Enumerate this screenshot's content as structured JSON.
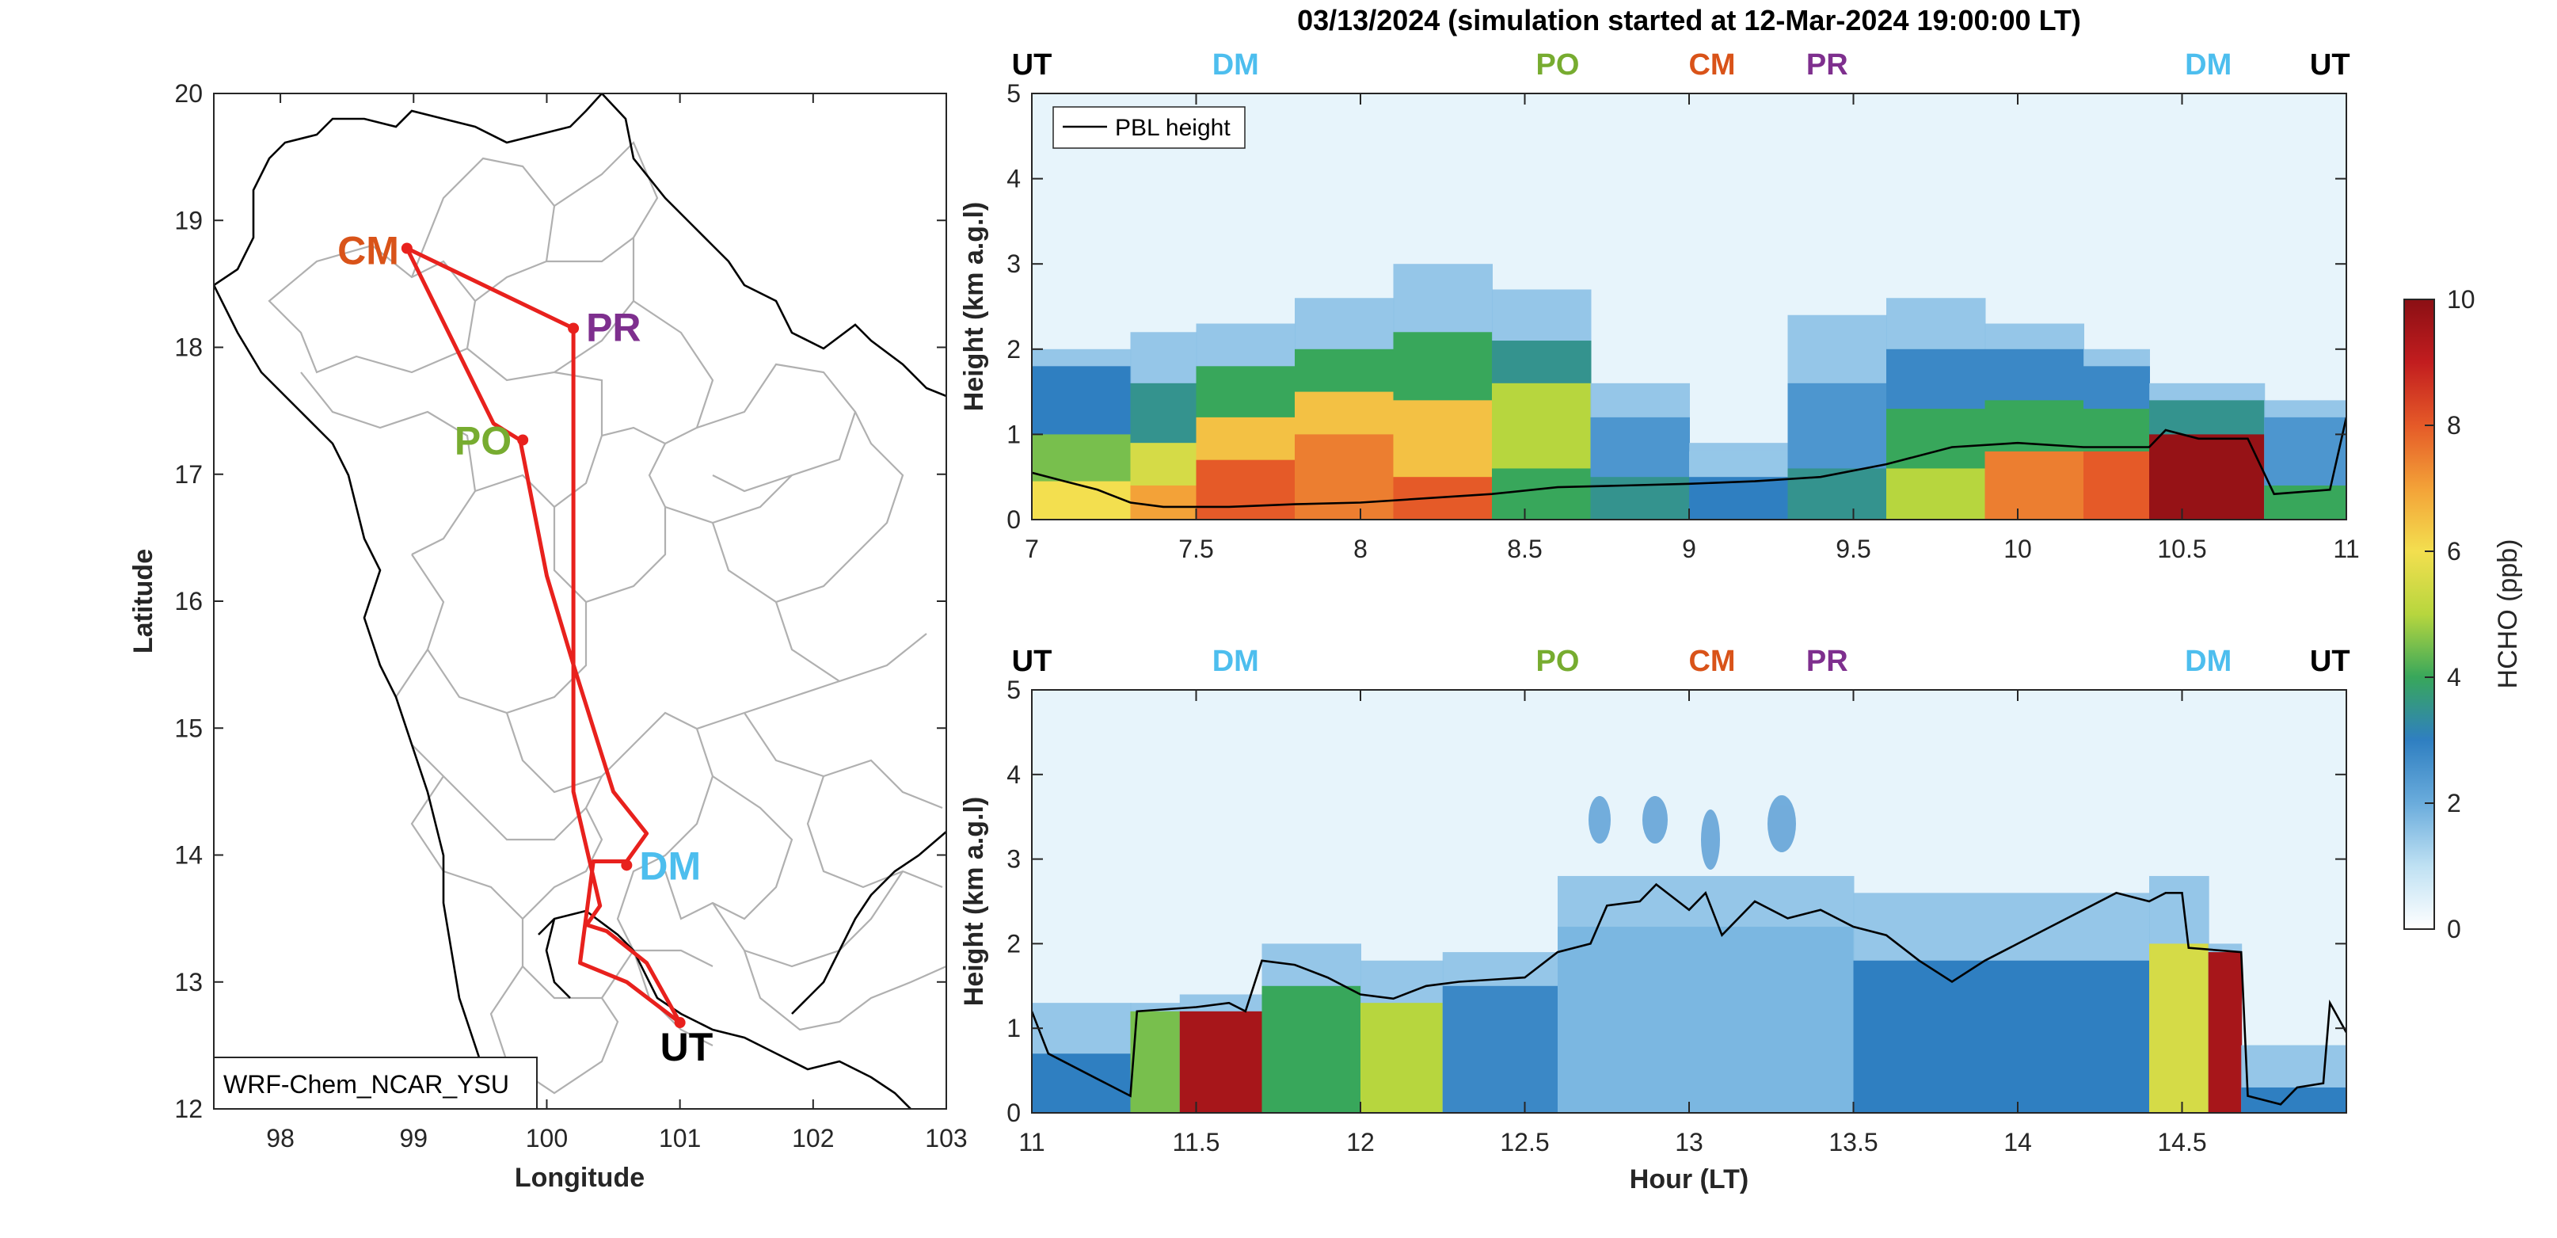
{
  "chart_data": [
    {
      "type": "map",
      "model_label": "WRF-Chem_NCAR_YSU",
      "xlabel": "Longitude",
      "ylabel": "Latitude",
      "xlim": [
        97.5,
        103
      ],
      "ylim": [
        12,
        20
      ],
      "xticks": [
        "98",
        "99",
        "100",
        "101",
        "102",
        "103"
      ],
      "yticks": [
        "12",
        "13",
        "14",
        "15",
        "16",
        "17",
        "18",
        "19",
        "20"
      ],
      "route_color": "#e8211d",
      "route": [
        [
          101.0,
          12.68
        ],
        [
          100.6,
          13.0
        ],
        [
          100.25,
          13.15
        ],
        [
          100.35,
          13.95
        ],
        [
          100.6,
          13.95
        ],
        [
          100.75,
          14.17
        ],
        [
          100.5,
          14.5
        ],
        [
          100.2,
          15.5
        ],
        [
          100.0,
          16.2
        ],
        [
          99.8,
          17.27
        ],
        [
          99.6,
          17.4
        ],
        [
          98.95,
          18.78
        ],
        [
          100.2,
          18.15
        ],
        [
          100.2,
          16.9
        ],
        [
          100.2,
          14.5
        ],
        [
          100.4,
          13.6
        ],
        [
          100.3,
          13.45
        ],
        [
          100.45,
          13.4
        ],
        [
          100.75,
          13.15
        ],
        [
          101.0,
          12.68
        ]
      ],
      "sites": [
        {
          "name": "CM",
          "lon": 98.95,
          "lat": 18.78,
          "color": "#d95319"
        },
        {
          "name": "PR",
          "lon": 100.2,
          "lat": 18.15,
          "color": "#7e2f8e"
        },
        {
          "name": "PO",
          "lon": 99.82,
          "lat": 17.27,
          "color": "#77ac30"
        },
        {
          "name": "DM",
          "lon": 100.6,
          "lat": 13.92,
          "color": "#4dbeee"
        },
        {
          "name": "UT",
          "lon": 101.0,
          "lat": 12.68,
          "color": "#000000"
        }
      ]
    },
    {
      "type": "heatmap",
      "title": "03/13/2024 (simulation started at 12-Mar-2024 19:00:00 LT)",
      "ylabel": "Height (km a.g.l)",
      "xlim": [
        7,
        11
      ],
      "ylim": [
        0,
        5
      ],
      "xticks": [
        "7",
        "7.5",
        "8",
        "8.5",
        "9",
        "9.5",
        "10",
        "10.5",
        "11"
      ],
      "yticks": [
        "0",
        "1",
        "2",
        "3",
        "4",
        "5"
      ],
      "legend": "PBL height",
      "top_labels": [
        {
          "text": "UT",
          "x": 7.0,
          "color": "#000000"
        },
        {
          "text": "DM",
          "x": 7.62,
          "color": "#4dbeee"
        },
        {
          "text": "PO",
          "x": 8.6,
          "color": "#77ac30"
        },
        {
          "text": "CM",
          "x": 9.07,
          "color": "#d95319"
        },
        {
          "text": "PR",
          "x": 9.42,
          "color": "#7e2f8e"
        },
        {
          "text": "DM",
          "x": 10.58,
          "color": "#4dbeee"
        },
        {
          "text": "UT",
          "x": 10.95,
          "color": "#000000"
        }
      ],
      "pbl": [
        [
          7.0,
          0.55
        ],
        [
          7.1,
          0.45
        ],
        [
          7.2,
          0.35
        ],
        [
          7.3,
          0.2
        ],
        [
          7.4,
          0.15
        ],
        [
          7.6,
          0.15
        ],
        [
          7.8,
          0.18
        ],
        [
          8.0,
          0.2
        ],
        [
          8.2,
          0.25
        ],
        [
          8.4,
          0.3
        ],
        [
          8.6,
          0.38
        ],
        [
          8.8,
          0.4
        ],
        [
          9.0,
          0.42
        ],
        [
          9.2,
          0.45
        ],
        [
          9.4,
          0.5
        ],
        [
          9.6,
          0.65
        ],
        [
          9.8,
          0.85
        ],
        [
          10.0,
          0.9
        ],
        [
          10.2,
          0.85
        ],
        [
          10.4,
          0.85
        ],
        [
          10.45,
          1.05
        ],
        [
          10.55,
          0.95
        ],
        [
          10.7,
          0.95
        ],
        [
          10.78,
          0.3
        ],
        [
          10.95,
          0.35
        ],
        [
          11.0,
          1.2
        ]
      ],
      "columns": [
        {
          "x0": 7.0,
          "x1": 7.3,
          "top": 2.0,
          "levels": [
            [
              0.45,
              6.0
            ],
            [
              1.0,
              4.5
            ],
            [
              1.8,
              3.0
            ]
          ]
        },
        {
          "x0": 7.3,
          "x1": 7.5,
          "top": 2.2,
          "levels": [
            [
              0.4,
              7.0
            ],
            [
              0.9,
              5.5
            ],
            [
              1.6,
              3.5
            ]
          ]
        },
        {
          "x0": 7.5,
          "x1": 7.8,
          "top": 2.3,
          "levels": [
            [
              0.7,
              8.0
            ],
            [
              1.2,
              6.5
            ],
            [
              1.8,
              4.0
            ]
          ]
        },
        {
          "x0": 7.8,
          "x1": 8.1,
          "top": 2.6,
          "levels": [
            [
              1.0,
              7.5
            ],
            [
              1.5,
              6.5
            ],
            [
              2.0,
              4.0
            ]
          ]
        },
        {
          "x0": 8.1,
          "x1": 8.4,
          "top": 3.0,
          "levels": [
            [
              0.5,
              8.0
            ],
            [
              1.4,
              6.5
            ],
            [
              2.2,
              4.0
            ]
          ]
        },
        {
          "x0": 8.4,
          "x1": 8.7,
          "top": 2.7,
          "levels": [
            [
              0.6,
              4.0
            ],
            [
              1.6,
              5.0
            ],
            [
              2.1,
              3.5
            ]
          ]
        },
        {
          "x0": 8.7,
          "x1": 9.0,
          "top": 1.6,
          "levels": [
            [
              0.5,
              3.5
            ],
            [
              1.2,
              2.5
            ]
          ]
        },
        {
          "x0": 9.0,
          "x1": 9.3,
          "top": 0.9,
          "levels": [
            [
              0.5,
              3.0
            ],
            [
              0.8,
              1.5
            ]
          ]
        },
        {
          "x0": 9.3,
          "x1": 9.6,
          "top": 2.4,
          "levels": [
            [
              0.6,
              3.5
            ],
            [
              1.6,
              2.5
            ]
          ]
        },
        {
          "x0": 9.6,
          "x1": 9.9,
          "top": 2.6,
          "levels": [
            [
              0.6,
              5.0
            ],
            [
              1.3,
              4.0
            ],
            [
              2.0,
              2.8
            ]
          ]
        },
        {
          "x0": 9.9,
          "x1": 10.2,
          "top": 2.3,
          "levels": [
            [
              0.8,
              7.5
            ],
            [
              1.4,
              4.0
            ],
            [
              2.0,
              2.8
            ]
          ]
        },
        {
          "x0": 10.2,
          "x1": 10.4,
          "top": 2.0,
          "levels": [
            [
              0.8,
              8.0
            ],
            [
              1.3,
              4.0
            ],
            [
              1.8,
              2.8
            ]
          ]
        },
        {
          "x0": 10.4,
          "x1": 10.75,
          "top": 1.6,
          "levels": [
            [
              1.0,
              9.8
            ],
            [
              1.4,
              3.5
            ]
          ]
        },
        {
          "x0": 10.75,
          "x1": 11.0,
          "top": 1.4,
          "levels": [
            [
              0.4,
              4.0
            ],
            [
              1.2,
              2.5
            ]
          ]
        }
      ]
    },
    {
      "type": "heatmap",
      "xlabel": "Hour (LT)",
      "ylabel": "Height (km a.g.l)",
      "xlim": [
        11,
        15
      ],
      "ylim": [
        0,
        5
      ],
      "xticks": [
        "11",
        "11.5",
        "12",
        "12.5",
        "13",
        "13.5",
        "14",
        "14.5"
      ],
      "yticks": [
        "0",
        "1",
        "2",
        "3",
        "4",
        "5"
      ],
      "top_labels": [
        {
          "text": "UT",
          "x": 11.0,
          "color": "#000000"
        },
        {
          "text": "DM",
          "x": 11.62,
          "color": "#4dbeee"
        },
        {
          "text": "PO",
          "x": 12.6,
          "color": "#77ac30"
        },
        {
          "text": "CM",
          "x": 13.07,
          "color": "#d95319"
        },
        {
          "text": "PR",
          "x": 13.42,
          "color": "#7e2f8e"
        },
        {
          "text": "DM",
          "x": 14.58,
          "color": "#4dbeee"
        },
        {
          "text": "UT",
          "x": 14.95,
          "color": "#000000"
        }
      ],
      "pbl": [
        [
          11.0,
          1.2
        ],
        [
          11.05,
          0.7
        ],
        [
          11.2,
          0.4
        ],
        [
          11.3,
          0.2
        ],
        [
          11.32,
          1.2
        ],
        [
          11.5,
          1.25
        ],
        [
          11.6,
          1.3
        ],
        [
          11.65,
          1.2
        ],
        [
          11.7,
          1.8
        ],
        [
          11.8,
          1.75
        ],
        [
          11.9,
          1.6
        ],
        [
          12.0,
          1.4
        ],
        [
          12.1,
          1.35
        ],
        [
          12.2,
          1.5
        ],
        [
          12.3,
          1.55
        ],
        [
          12.5,
          1.6
        ],
        [
          12.6,
          1.9
        ],
        [
          12.7,
          2.0
        ],
        [
          12.75,
          2.45
        ],
        [
          12.85,
          2.5
        ],
        [
          12.9,
          2.7
        ],
        [
          13.0,
          2.4
        ],
        [
          13.05,
          2.6
        ],
        [
          13.1,
          2.1
        ],
        [
          13.2,
          2.5
        ],
        [
          13.3,
          2.3
        ],
        [
          13.4,
          2.4
        ],
        [
          13.5,
          2.2
        ],
        [
          13.6,
          2.1
        ],
        [
          13.7,
          1.8
        ],
        [
          13.8,
          1.55
        ],
        [
          13.9,
          1.8
        ],
        [
          14.0,
          2.0
        ],
        [
          14.1,
          2.2
        ],
        [
          14.2,
          2.4
        ],
        [
          14.3,
          2.6
        ],
        [
          14.4,
          2.5
        ],
        [
          14.45,
          2.6
        ],
        [
          14.5,
          2.6
        ],
        [
          14.52,
          1.95
        ],
        [
          14.68,
          1.9
        ],
        [
          14.7,
          0.2
        ],
        [
          14.8,
          0.1
        ],
        [
          14.85,
          0.3
        ],
        [
          14.93,
          0.35
        ],
        [
          14.95,
          1.3
        ],
        [
          15.0,
          0.95
        ]
      ],
      "columns": [
        {
          "x0": 11.0,
          "x1": 11.3,
          "top": 1.3,
          "levels": [
            [
              0.7,
              3.0
            ]
          ]
        },
        {
          "x0": 11.3,
          "x1": 11.45,
          "top": 1.3,
          "levels": [
            [
              1.2,
              4.5
            ]
          ]
        },
        {
          "x0": 11.45,
          "x1": 11.7,
          "top": 1.4,
          "levels": [
            [
              1.2,
              9.5
            ]
          ]
        },
        {
          "x0": 11.7,
          "x1": 12.0,
          "top": 2.0,
          "levels": [
            [
              1.5,
              4.0
            ]
          ]
        },
        {
          "x0": 12.0,
          "x1": 12.25,
          "top": 1.8,
          "levels": [
            [
              1.3,
              5.0
            ]
          ]
        },
        {
          "x0": 12.25,
          "x1": 12.6,
          "top": 1.9,
          "levels": [
            [
              1.5,
              2.8
            ]
          ]
        },
        {
          "x0": 12.6,
          "x1": 13.5,
          "top": 2.8,
          "levels": [
            [
              2.2,
              1.8
            ]
          ]
        },
        {
          "x0": 13.5,
          "x1": 14.4,
          "top": 2.6,
          "levels": [
            [
              1.8,
              3.0
            ]
          ]
        },
        {
          "x0": 14.4,
          "x1": 14.58,
          "top": 2.8,
          "levels": [
            [
              2.0,
              5.5
            ]
          ]
        },
        {
          "x0": 14.58,
          "x1": 14.68,
          "top": 2.0,
          "levels": [
            [
              1.9,
              9.5
            ]
          ]
        },
        {
          "x0": 14.68,
          "x1": 15.0,
          "top": 0.8,
          "levels": [
            [
              0.3,
              3.0
            ]
          ]
        }
      ]
    },
    {
      "type": "colorbar",
      "label": "HCHO (ppb)",
      "range": [
        0,
        10
      ],
      "ticks": [
        "0",
        "2",
        "4",
        "6",
        "8",
        "10"
      ],
      "colors": [
        "#ffffff",
        "#bfe1f3",
        "#6aacdc",
        "#2f7fc1",
        "#38a75b",
        "#b7d63e",
        "#f3df4f",
        "#f3a238",
        "#e55a28",
        "#c21d1f",
        "#8b0f14"
      ]
    }
  ]
}
